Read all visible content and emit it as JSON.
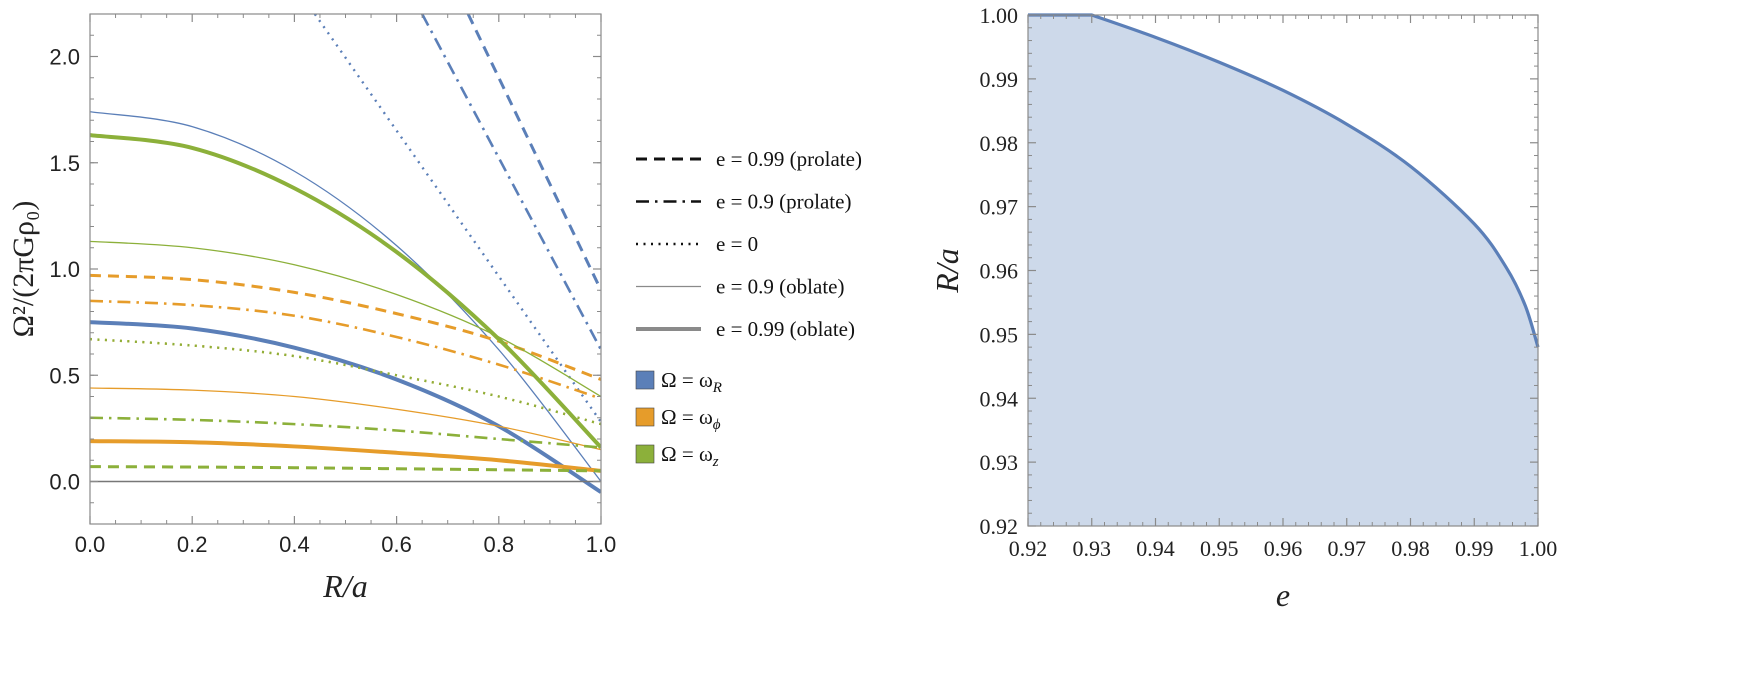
{
  "colors": {
    "omega_R": "#5b7fb8",
    "omega_phi": "#e69c2a",
    "omega_z": "#8cb03a",
    "zero_line": "#777777",
    "frame": "#8a8a8a",
    "region_fill": "#cdd9ea",
    "region_edge": "#5b7fb8"
  },
  "chart_data": [
    {
      "type": "line",
      "id": "left",
      "xlabel": "R/a",
      "ylabel": "Ω²/(2πGρ₀)",
      "xlim": [
        0,
        1
      ],
      "ylim": [
        -0.2,
        2.2
      ],
      "xticks": [
        0.0,
        0.2,
        0.4,
        0.6,
        0.8,
        1.0
      ],
      "xtick_labels": [
        "0.0",
        "0.2",
        "0.4",
        "0.6",
        "0.8",
        "1.0"
      ],
      "yticks": [
        0.0,
        0.5,
        1.0,
        1.5,
        2.0
      ],
      "ytick_labels": [
        "0.0",
        "0.5",
        "1.0",
        "1.5",
        "2.0"
      ],
      "zero_line": 0.0,
      "series": [
        {
          "name": "ωR, e = 0.99 (oblate)",
          "freq": "omega_R",
          "style": "thick",
          "x": [
            0,
            0.2,
            0.4,
            0.6,
            0.8,
            1.0
          ],
          "y": [
            0.75,
            0.72,
            0.63,
            0.48,
            0.26,
            -0.05
          ]
        },
        {
          "name": "ωR, e = 0.9 (oblate)",
          "freq": "omega_R",
          "style": "thin",
          "x": [
            0,
            0.2,
            0.4,
            0.6,
            0.8,
            1.0
          ],
          "y": [
            1.74,
            1.67,
            1.46,
            1.11,
            0.62,
            0.0
          ]
        },
        {
          "name": "ωR, e = 0",
          "freq": "omega_R",
          "style": "dotted",
          "x": [
            0.44,
            1.0
          ],
          "y": [
            2.2,
            0.28
          ]
        },
        {
          "name": "ωR, e = 0.9 (prolate)",
          "freq": "omega_R",
          "style": "dashdot",
          "x": [
            0.65,
            1.0
          ],
          "y": [
            2.2,
            0.62
          ]
        },
        {
          "name": "ωR, e = 0.99 (prolate)",
          "freq": "omega_R",
          "style": "dashed",
          "x": [
            0.74,
            1.0
          ],
          "y": [
            2.2,
            0.9
          ]
        },
        {
          "name": "ωφ, e = 0.99 (oblate)",
          "freq": "omega_phi",
          "style": "thick",
          "x": [
            0,
            0.2,
            0.4,
            0.6,
            0.8,
            1.0
          ],
          "y": [
            0.19,
            0.185,
            0.165,
            0.135,
            0.1,
            0.05
          ]
        },
        {
          "name": "ωφ, e = 0.9 (oblate)",
          "freq": "omega_phi",
          "style": "thin",
          "x": [
            0,
            0.2,
            0.4,
            0.6,
            0.8,
            1.0
          ],
          "y": [
            0.44,
            0.43,
            0.4,
            0.34,
            0.26,
            0.15
          ]
        },
        {
          "name": "ωφ, e = 0",
          "freq": "omega_phi",
          "style": "dotted",
          "x": [
            0,
            0.2,
            0.4,
            0.6,
            0.8,
            1.0
          ],
          "y": [
            0.67,
            0.64,
            0.59,
            0.5,
            0.4,
            0.27
          ]
        },
        {
          "name": "ωφ, e = 0.9 (prolate)",
          "freq": "omega_phi",
          "style": "dashdot",
          "x": [
            0,
            0.2,
            0.4,
            0.6,
            0.8,
            1.0
          ],
          "y": [
            0.85,
            0.83,
            0.78,
            0.68,
            0.55,
            0.39
          ]
        },
        {
          "name": "ωφ, e = 0.99 (prolate)",
          "freq": "omega_phi",
          "style": "dashed",
          "x": [
            0,
            0.2,
            0.4,
            0.6,
            0.8,
            1.0
          ],
          "y": [
            0.97,
            0.95,
            0.89,
            0.79,
            0.66,
            0.48
          ]
        },
        {
          "name": "ωz, e = 0.99 (oblate)",
          "freq": "omega_z",
          "style": "thick",
          "x": [
            0,
            0.2,
            0.4,
            0.6,
            0.8,
            1.0
          ],
          "y": [
            1.63,
            1.57,
            1.38,
            1.08,
            0.67,
            0.16
          ]
        },
        {
          "name": "ωz, e = 0.9 (oblate)",
          "freq": "omega_z",
          "style": "thin",
          "x": [
            0,
            0.2,
            0.4,
            0.6,
            0.8,
            1.0
          ],
          "y": [
            1.13,
            1.1,
            1.02,
            0.88,
            0.68,
            0.4
          ]
        },
        {
          "name": "ωz, e = 0",
          "freq": "omega_z",
          "style": "dotted",
          "x": [
            0,
            0.2,
            0.4,
            0.6,
            0.8,
            1.0
          ],
          "y": [
            0.67,
            0.64,
            0.59,
            0.5,
            0.4,
            0.27
          ]
        },
        {
          "name": "ωz, e = 0.9 (prolate)",
          "freq": "omega_z",
          "style": "dashdot",
          "x": [
            0,
            0.2,
            0.4,
            0.6,
            0.8,
            1.0
          ],
          "y": [
            0.3,
            0.29,
            0.27,
            0.24,
            0.2,
            0.16
          ]
        },
        {
          "name": "ωz, e = 0.99 (prolate)",
          "freq": "omega_z",
          "style": "dashed",
          "x": [
            0,
            0.2,
            0.4,
            0.6,
            0.8,
            1.0
          ],
          "y": [
            0.07,
            0.068,
            0.065,
            0.06,
            0.055,
            0.05
          ]
        }
      ],
      "legend": {
        "placement": "right",
        "styles": [
          {
            "style": "dashed",
            "label": "e = 0.99 (prolate)"
          },
          {
            "style": "dashdot",
            "label": "e = 0.9 (prolate)"
          },
          {
            "style": "dotted",
            "label": "e = 0"
          },
          {
            "style": "thin",
            "label": "e = 0.9 (oblate)"
          },
          {
            "style": "thick",
            "label": "e = 0.99 (oblate)"
          }
        ],
        "colors": [
          {
            "freq": "omega_R",
            "label_main": "Ω = ω",
            "label_sub": "R"
          },
          {
            "freq": "omega_phi",
            "label_main": "Ω = ω",
            "label_sub": "ϕ"
          },
          {
            "freq": "omega_z",
            "label_main": "Ω = ω",
            "label_sub": "z"
          }
        ]
      }
    },
    {
      "type": "area",
      "id": "right",
      "xlabel": "e",
      "ylabel": "R/a",
      "xlim": [
        0.92,
        1.0
      ],
      "ylim": [
        0.92,
        1.0
      ],
      "xticks": [
        0.92,
        0.93,
        0.94,
        0.95,
        0.96,
        0.97,
        0.98,
        0.99,
        1.0
      ],
      "xtick_labels": [
        "0.92",
        "0.93",
        "0.94",
        "0.95",
        "0.96",
        "0.97",
        "0.98",
        "0.99",
        "1.00"
      ],
      "yticks": [
        0.92,
        0.93,
        0.94,
        0.95,
        0.96,
        0.97,
        0.98,
        0.99,
        1.0
      ],
      "ytick_labels": [
        "0.92",
        "0.93",
        "0.94",
        "0.95",
        "0.96",
        "0.97",
        "0.98",
        "0.99",
        "1.00"
      ],
      "boundary": {
        "x": [
          0.92,
          0.93,
          0.94,
          0.95,
          0.96,
          0.97,
          0.98,
          0.99,
          0.995,
          0.998,
          1.0
        ],
        "y": [
          1.0,
          1.0,
          0.9965,
          0.9926,
          0.9882,
          0.9829,
          0.9763,
          0.9673,
          0.9605,
          0.9545,
          0.948
        ]
      }
    }
  ]
}
